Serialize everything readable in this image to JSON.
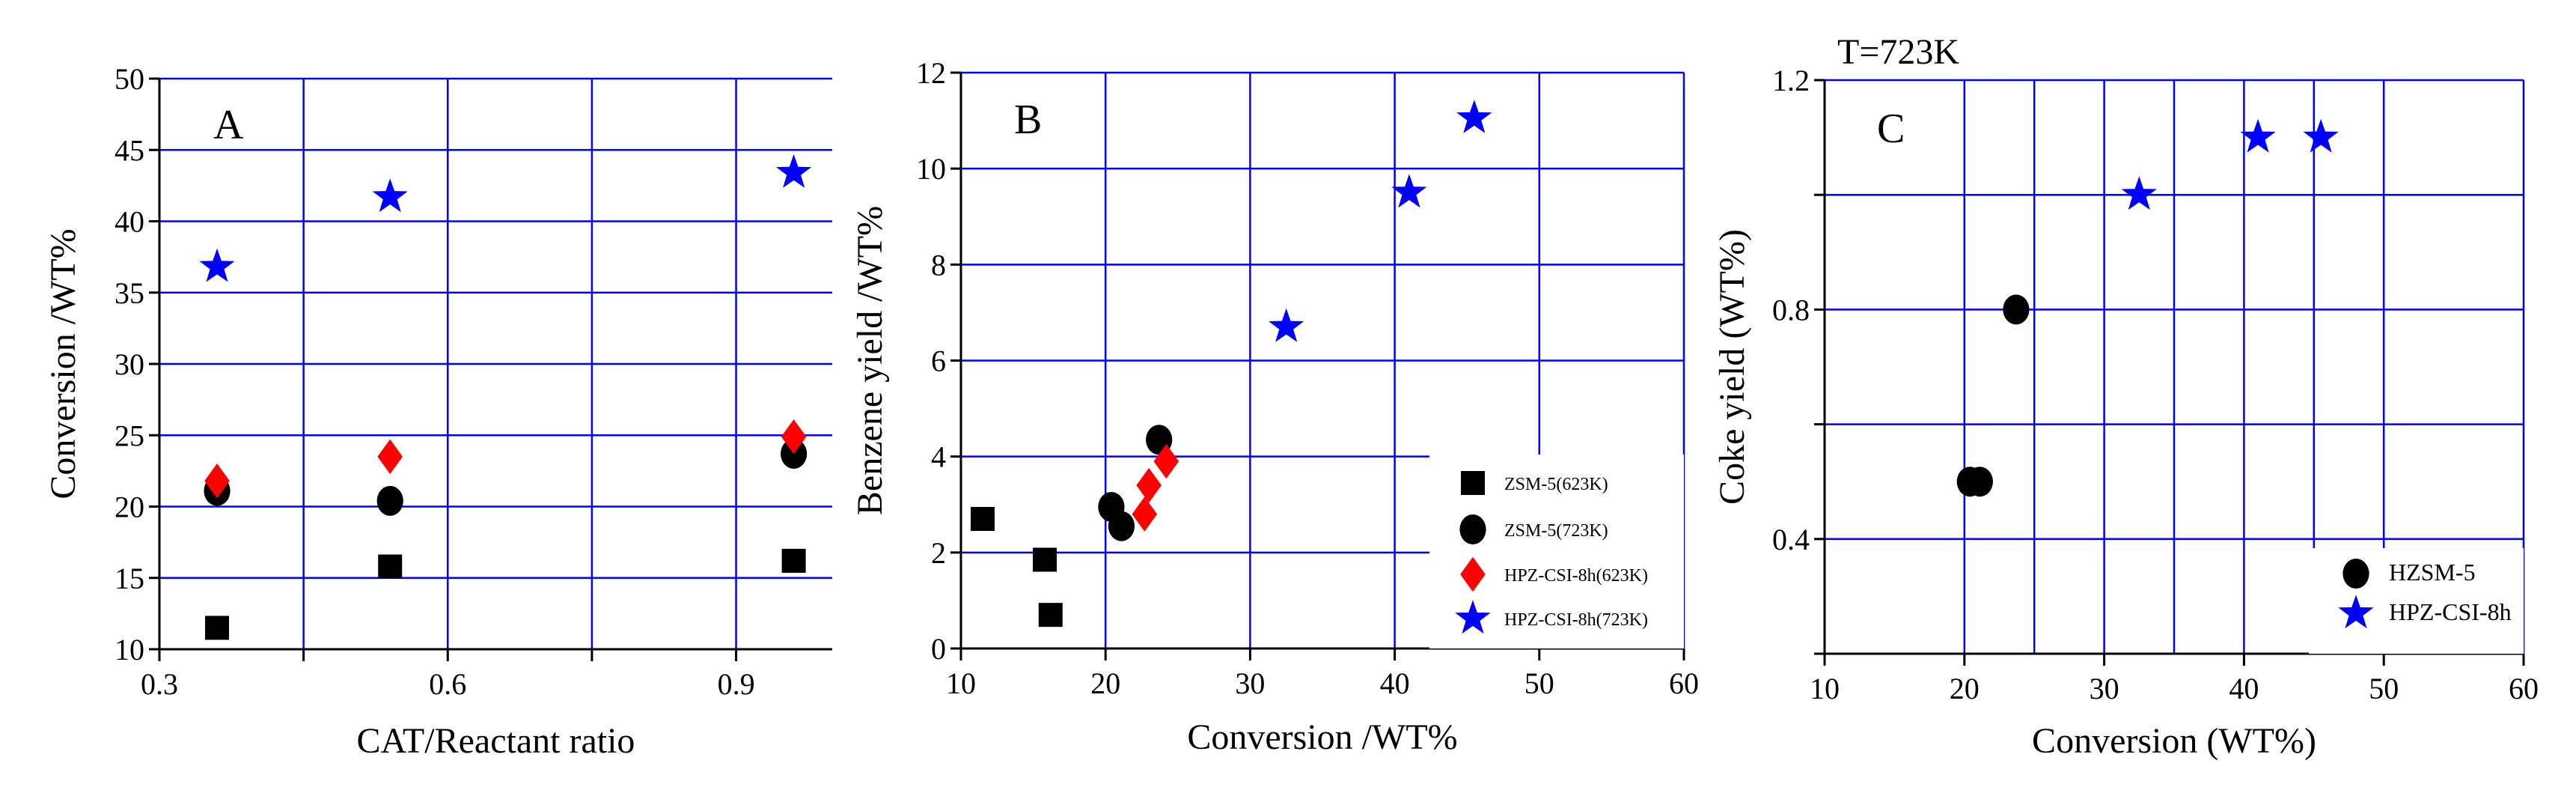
{
  "chart_data": [
    {
      "type": "scatter",
      "panel_label": "A",
      "title": "",
      "xlabel": "CAT/Reactant ratio",
      "ylabel": "Conversion /WT%",
      "xlim": [
        0.3,
        1.0
      ],
      "ylim": [
        10,
        50
      ],
      "xticks": [
        0.3,
        0.6,
        0.9
      ],
      "xtick_labels": [
        "0.3",
        "0.6",
        "0.9"
      ],
      "yticks": [
        10,
        15,
        20,
        25,
        30,
        35,
        40,
        45,
        50
      ],
      "ytick_labels": [
        "10",
        "15",
        "20",
        "25",
        "30",
        "35",
        "40",
        "45",
        "50"
      ],
      "grid": true,
      "legend": "none",
      "series": [
        {
          "name": "ZSM-5(623K)",
          "marker": "square",
          "color": "#000000",
          "x": [
            0.36,
            0.54,
            0.96
          ],
          "y": [
            11.5,
            15.8,
            16.2
          ]
        },
        {
          "name": "ZSM-5(723K)",
          "marker": "circle",
          "color": "#000000",
          "x": [
            0.36,
            0.54,
            0.96
          ],
          "y": [
            21.1,
            20.4,
            23.7
          ]
        },
        {
          "name": "HPZ-CSI-8h(623K)",
          "marker": "diamond",
          "color": "#ff0000",
          "x": [
            0.36,
            0.54,
            0.96
          ],
          "y": [
            21.8,
            23.5,
            24.9
          ]
        },
        {
          "name": "HPZ-CSI-8h(723K)",
          "marker": "star",
          "color": "#0000ff",
          "x": [
            0.36,
            0.54,
            0.96
          ],
          "y": [
            36.8,
            41.7,
            43.4
          ]
        }
      ]
    },
    {
      "type": "scatter",
      "panel_label": "B",
      "title": "",
      "xlabel": "Conversion /WT%",
      "ylabel": "Benzene yield /WT%",
      "xlim": [
        10,
        60
      ],
      "ylim": [
        0,
        12
      ],
      "xticks": [
        10,
        20,
        30,
        40,
        50,
        60
      ],
      "xtick_labels": [
        "10",
        "20",
        "30",
        "40",
        "50",
        "60"
      ],
      "yticks": [
        0,
        2,
        4,
        6,
        8,
        10,
        12
      ],
      "ytick_labels": [
        "0",
        "2",
        "4",
        "6",
        "8",
        "10",
        "12"
      ],
      "grid": true,
      "legend": "bottom-right",
      "series": [
        {
          "name": "ZSM-5(623K)",
          "marker": "square",
          "color": "#000000",
          "x": [
            11.5,
            15.8,
            16.2
          ],
          "y": [
            2.7,
            1.85,
            0.7
          ]
        },
        {
          "name": "ZSM-5(723K)",
          "marker": "circle",
          "color": "#000000",
          "x": [
            20.4,
            21.1,
            23.7
          ],
          "y": [
            2.95,
            2.55,
            4.35
          ]
        },
        {
          "name": "HPZ-CSI-8h(623K)",
          "marker": "diamond",
          "color": "#ff0000",
          "x": [
            22.7,
            23.0,
            24.2
          ],
          "y": [
            2.8,
            3.4,
            3.9
          ]
        },
        {
          "name": "HPZ-CSI-8h(723K)",
          "marker": "star",
          "color": "#0000ff",
          "x": [
            32.5,
            41.0,
            45.5
          ],
          "y": [
            6.7,
            9.5,
            11.05
          ]
        }
      ]
    },
    {
      "type": "scatter",
      "panel_label": "C",
      "title": "T=723K",
      "xlabel": "Conversion (WT%)",
      "ylabel": "Coke yield (WT%)",
      "xlim": [
        10,
        60
      ],
      "ylim": [
        0.2,
        1.2
      ],
      "xticks": [
        10,
        20,
        30,
        40,
        50,
        60
      ],
      "xtick_labels": [
        "10",
        "20",
        "30",
        "40",
        "50",
        "60"
      ],
      "yticks": [
        0.2,
        0.4,
        0.6,
        0.8,
        1.0,
        1.2
      ],
      "ytick_labels": [
        "",
        "0.4",
        "",
        "0.8",
        "",
        "1.2"
      ],
      "grid": true,
      "legend": "bottom-right",
      "series": [
        {
          "name": "HZSM-5",
          "marker": "circle",
          "color": "#000000",
          "x": [
            20.4,
            21.1,
            23.7
          ],
          "y": [
            0.5,
            0.5,
            0.8
          ]
        },
        {
          "name": "HPZ-CSI-8h",
          "marker": "star",
          "color": "#0000ff",
          "x": [
            32.5,
            41.0,
            45.5
          ],
          "y": [
            1.0,
            1.1,
            1.1
          ]
        }
      ]
    }
  ]
}
